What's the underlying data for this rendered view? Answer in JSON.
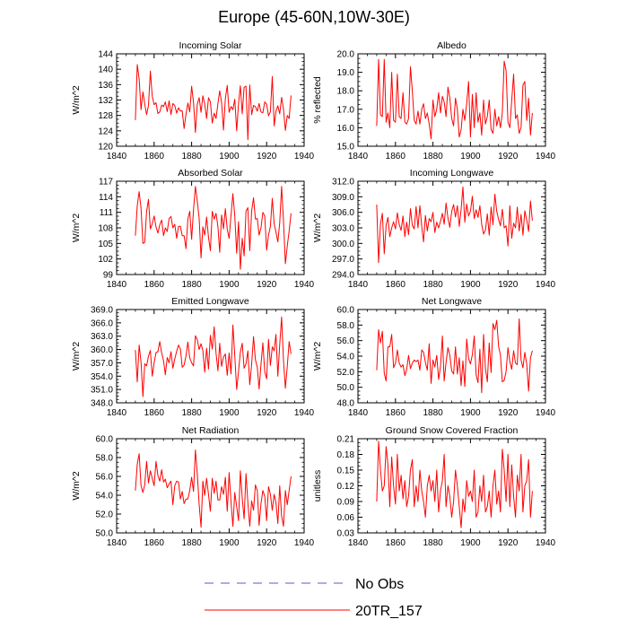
{
  "title": "Europe (45-60N,10W-30E)",
  "colors": {
    "model": "#ff0000",
    "obs": "#5a5acd",
    "axis": "#000000"
  },
  "legend": {
    "placement": "bottom-center",
    "items": [
      {
        "label": "No Obs",
        "style": "dashed",
        "color": "#5a5acd"
      },
      {
        "label": "20TR_157",
        "style": "solid",
        "color": "#ff0000"
      }
    ]
  },
  "chart_data": [
    {
      "type": "line",
      "title": "Incoming Solar",
      "xlabel": "",
      "ylabel": "W/m^2",
      "xlim": [
        1840,
        1940
      ],
      "ylim": [
        120,
        144
      ],
      "x_ticks": [
        "1840",
        "1860",
        "1880",
        "1900",
        "1920",
        "1940"
      ],
      "y_ticks": [
        "120",
        "124",
        "128",
        "132",
        "136",
        "140",
        "144"
      ],
      "series": [
        {
          "name": "20TR_157",
          "x_start": 1850,
          "values": [
            126.8,
            141.2,
            137.5,
            129.5,
            134.1,
            131.0,
            128.2,
            130.6,
            139.5,
            133.0,
            130.8,
            131.3,
            128.5,
            128.9,
            130.7,
            130.3,
            131.5,
            129.0,
            131.8,
            128.2,
            131.1,
            130.6,
            128.6,
            130.0,
            129.1,
            129.2,
            124.6,
            128.3,
            131.2,
            128.9,
            135.6,
            131.4,
            123.6,
            130.9,
            132.6,
            128.8,
            133.1,
            131.0,
            127.2,
            132.6,
            131.5,
            126.0,
            128.6,
            127.2,
            131.1,
            134.4,
            131.4,
            124.2,
            132.4,
            135.8,
            128.8,
            130.3,
            129.5,
            132.2,
            124.0,
            131.1,
            135.7,
            128.4,
            135.3,
            135.6,
            121.7,
            135.9,
            128.2,
            130.6,
            130.3,
            129.1,
            131.1,
            128.9,
            128.7,
            131.5,
            130.9,
            127.9,
            129.0,
            138.1,
            125.3,
            129.1,
            130.5,
            128.4,
            132.7,
            129.6,
            124.1,
            128.0,
            127.2,
            133.2
          ]
        }
      ]
    },
    {
      "type": "line",
      "title": "Albedo",
      "xlabel": "",
      "ylabel": "% reflected",
      "xlim": [
        1840,
        1940
      ],
      "ylim": [
        15,
        20
      ],
      "x_ticks": [
        "1840",
        "1860",
        "1880",
        "1900",
        "1920",
        "1940"
      ],
      "y_ticks": [
        "15.0",
        "16.0",
        "17.0",
        "18.0",
        "19.0",
        "20.0"
      ],
      "series": [
        {
          "name": "20TR_157",
          "x_start": 1850,
          "values": [
            16.1,
            19.7,
            16.7,
            16.6,
            19.7,
            16.3,
            16.8,
            16.0,
            19.0,
            16.4,
            16.3,
            18.9,
            16.6,
            16.5,
            17.9,
            16.3,
            16.2,
            16.5,
            19.3,
            18.0,
            16.4,
            16.2,
            16.9,
            16.2,
            17.0,
            17.3,
            16.5,
            16.8,
            16.2,
            15.4,
            17.5,
            16.6,
            17.0,
            17.9,
            16.8,
            17.7,
            17.4,
            16.6,
            18.2,
            17.6,
            16.5,
            16.1,
            17.6,
            17.0,
            15.5,
            15.9,
            17.0,
            16.4,
            17.3,
            18.5,
            15.5,
            17.8,
            16.0,
            17.9,
            16.3,
            16.8,
            15.6,
            17.5,
            16.2,
            16.6,
            17.5,
            15.9,
            15.7,
            17.0,
            16.1,
            16.6,
            16.0,
            16.8,
            19.6,
            19.1,
            16.3,
            16.0,
            17.5,
            18.9,
            16.5,
            16.7,
            15.7,
            16.0,
            18.3,
            18.5,
            16.4,
            17.6,
            15.6,
            16.8
          ]
        }
      ]
    },
    {
      "type": "line",
      "title": "Absorbed Solar",
      "xlabel": "",
      "ylabel": "W/m^2",
      "xlim": [
        1840,
        1940
      ],
      "ylim": [
        99,
        117
      ],
      "x_ticks": [
        "1840",
        "1860",
        "1880",
        "1900",
        "1920",
        "1940"
      ],
      "y_ticks": [
        "99",
        "102",
        "105",
        "108",
        "111",
        "114",
        "117"
      ],
      "series": [
        {
          "name": "20TR_157",
          "x_start": 1850,
          "values": [
            106.5,
            112.3,
            115.0,
            111.8,
            105.0,
            105.2,
            111.2,
            113.5,
            107.8,
            108.8,
            110.3,
            108.2,
            107.0,
            108.6,
            109.5,
            106.5,
            108.0,
            107.3,
            109.8,
            110.2,
            108.0,
            108.7,
            106.0,
            108.3,
            108.3,
            106.5,
            106.5,
            104.0,
            109.7,
            111.2,
            105.8,
            111.5,
            116.0,
            113.2,
            109.8,
            102.2,
            108.2,
            106.6,
            110.1,
            106.2,
            103.6,
            111.2,
            109.7,
            110.8,
            108.3,
            103.3,
            110.5,
            107.8,
            111.7,
            107.7,
            106.0,
            110.4,
            114.6,
            110.3,
            103.1,
            109.2,
            100.0,
            106.0,
            102.6,
            111.2,
            111.9,
            103.6,
            111.3,
            113.8,
            109.7,
            109.8,
            106.6,
            108.0,
            111.0,
            110.3,
            103.7,
            106.6,
            108.3,
            113.7,
            108.8,
            107.2,
            105.3,
            109.0,
            116.0,
            109.3,
            101.1,
            104.5,
            107.4,
            110.8
          ]
        }
      ]
    },
    {
      "type": "line",
      "title": "Incoming Longwave",
      "xlabel": "",
      "ylabel": "W/m^2",
      "xlim": [
        1840,
        1940
      ],
      "ylim": [
        294,
        312
      ],
      "x_ticks": [
        "1840",
        "1860",
        "1880",
        "1900",
        "1920",
        "1940"
      ],
      "y_ticks": [
        "294.0",
        "297.0",
        "300.0",
        "303.0",
        "306.0",
        "309.0",
        "312.0"
      ],
      "series": [
        {
          "name": "20TR_157",
          "x_start": 1850,
          "values": [
            307.5,
            296.3,
            303.8,
            305.8,
            298.0,
            303.5,
            305.0,
            301.3,
            303.0,
            304.2,
            302.8,
            305.9,
            303.7,
            302.5,
            305.3,
            301.3,
            304.1,
            301.7,
            306.7,
            303.5,
            302.8,
            307.1,
            303.0,
            307.3,
            303.3,
            300.3,
            305.4,
            302.4,
            304.8,
            304.2,
            306.0,
            302.1,
            304.1,
            303.0,
            304.3,
            305.8,
            303.7,
            307.8,
            304.9,
            303.1,
            306.2,
            307.5,
            305.1,
            307.3,
            303.3,
            306.6,
            310.9,
            304.1,
            307.6,
            305.3,
            306.2,
            309.1,
            304.8,
            306.5,
            305.0,
            307.3,
            303.7,
            301.8,
            302.6,
            305.7,
            301.6,
            307.0,
            303.6,
            309.5,
            306.2,
            304.6,
            303.4,
            306.6,
            303.0,
            303.4,
            299.5,
            307.3,
            301.0,
            303.9,
            303.0,
            307.0,
            302.4,
            305.6,
            301.6,
            306.3,
            304.5,
            302.3,
            308.2,
            304.4
          ]
        }
      ]
    },
    {
      "type": "line",
      "title": "Emitted Longwave",
      "xlabel": "",
      "ylabel": "W/m^2",
      "xlim": [
        1840,
        1940
      ],
      "ylim": [
        348,
        369
      ],
      "x_ticks": [
        "1840",
        "1860",
        "1880",
        "1900",
        "1920",
        "1940"
      ],
      "y_ticks": [
        "348.0",
        "351.0",
        "354.0",
        "357.0",
        "360.0",
        "363.0",
        "366.0",
        "369.0"
      ],
      "series": [
        {
          "name": "20TR_157",
          "x_start": 1850,
          "values": [
            359.9,
            352.7,
            361.0,
            357.2,
            349.4,
            356.8,
            356.3,
            358.5,
            359.8,
            354.0,
            357.0,
            359.3,
            359.5,
            361.8,
            359.2,
            357.5,
            354.3,
            358.2,
            357.0,
            359.5,
            355.8,
            357.9,
            359.6,
            361.0,
            360.1,
            356.0,
            356.5,
            358.5,
            361.7,
            358.1,
            357.0,
            356.3,
            363.1,
            362.2,
            360.0,
            361.3,
            359.8,
            354.9,
            360.3,
            355.6,
            363.2,
            360.1,
            365.1,
            359.2,
            355.2,
            361.4,
            356.2,
            358.3,
            359.0,
            354.2,
            359.2,
            354.5,
            365.5,
            358.6,
            351.0,
            355.1,
            359.4,
            361.4,
            355.8,
            356.8,
            359.7,
            352.1,
            356.7,
            362.9,
            357.7,
            356.0,
            351.1,
            356.6,
            361.5,
            355.0,
            353.4,
            362.3,
            356.4,
            360.6,
            359.7,
            363.4,
            354.0,
            361.1,
            367.3,
            357.5,
            351.3,
            356.2,
            361.8,
            359.0
          ]
        }
      ]
    },
    {
      "type": "line",
      "title": "Net Longwave",
      "xlabel": "",
      "ylabel": "W/m^2",
      "xlim": [
        1840,
        1940
      ],
      "ylim": [
        48,
        60
      ],
      "x_ticks": [
        "1840",
        "1860",
        "1880",
        "1900",
        "1920",
        "1940"
      ],
      "y_ticks": [
        "48.0",
        "50.0",
        "52.0",
        "54.0",
        "56.0",
        "58.0",
        "60.0"
      ],
      "series": [
        {
          "name": "20TR_157",
          "x_start": 1850,
          "values": [
            52.2,
            57.4,
            55.7,
            57.2,
            51.8,
            50.8,
            55.2,
            55.2,
            56.8,
            52.5,
            53.1,
            54.8,
            53.1,
            52.6,
            52.9,
            51.5,
            52.3,
            54.1,
            52.4,
            53.1,
            53.5,
            53.3,
            53.5,
            52.2,
            54.8,
            54.5,
            53.2,
            52.2,
            55.6,
            50.5,
            53.5,
            52.6,
            54.1,
            51.0,
            52.7,
            56.6,
            50.8,
            53.2,
            55.1,
            54.1,
            52.1,
            51.7,
            55.2,
            51.7,
            53.8,
            50.2,
            53.4,
            50.1,
            56.2,
            53.7,
            53.0,
            54.2,
            56.6,
            51.6,
            50.6,
            54.9,
            49.3,
            56.8,
            52.4,
            50.7,
            55.7,
            51.9,
            58.2,
            57.4,
            58.6,
            55.2,
            54.2,
            50.7,
            50.9,
            52.0,
            55.1,
            53.3,
            52.3,
            54.7,
            53.1,
            52.9,
            58.8,
            53.5,
            52.5,
            54.5,
            53.0,
            49.5,
            53.8,
            54.7
          ]
        }
      ]
    },
    {
      "type": "line",
      "title": "Net Radiation",
      "xlabel": "",
      "ylabel": "W/m^2",
      "xlim": [
        1840,
        1940
      ],
      "ylim": [
        50,
        60
      ],
      "x_ticks": [
        "1840",
        "1860",
        "1880",
        "1900",
        "1920",
        "1940"
      ],
      "y_ticks": [
        "50.0",
        "52.0",
        "54.0",
        "56.0",
        "58.0",
        "60.0"
      ],
      "series": [
        {
          "name": "20TR_157",
          "x_start": 1850,
          "values": [
            54.5,
            57.3,
            58.4,
            55.0,
            54.3,
            55.1,
            57.6,
            55.3,
            56.6,
            55.8,
            55.0,
            57.6,
            56.1,
            55.5,
            56.7,
            55.4,
            55.7,
            54.8,
            55.2,
            55.5,
            53.0,
            55.0,
            55.5,
            55.4,
            53.6,
            54.4,
            53.1,
            53.6,
            53.6,
            54.5,
            55.9,
            54.4,
            58.8,
            56.3,
            53.0,
            50.6,
            55.5,
            54.0,
            55.8,
            54.1,
            52.3,
            55.8,
            54.2,
            55.5,
            53.5,
            53.5,
            54.9,
            54.1,
            55.9,
            52.3,
            56.4,
            53.3,
            50.7,
            54.3,
            52.8,
            51.3,
            56.6,
            53.7,
            51.5,
            56.3,
            53.2,
            50.7,
            53.4,
            52.4,
            55.1,
            54.5,
            50.8,
            53.1,
            54.5,
            53.9,
            51.3,
            54.9,
            54.1,
            52.4,
            54.1,
            53.2,
            51.0,
            55.0,
            51.8,
            50.7,
            54.5,
            53.0,
            54.5,
            56.0
          ]
        }
      ]
    },
    {
      "type": "line",
      "title": "Ground Snow Covered Fraction",
      "xlabel": "",
      "ylabel": "unitless",
      "xlim": [
        1840,
        1940
      ],
      "ylim": [
        0.03,
        0.21
      ],
      "x_ticks": [
        "1840",
        "1860",
        "1880",
        "1900",
        "1920",
        "1940"
      ],
      "y_ticks": [
        "0.03",
        "0.06",
        "0.09",
        "0.12",
        "0.15",
        "0.18",
        "0.21"
      ],
      "series": [
        {
          "name": "20TR_157",
          "x_start": 1850,
          "values": [
            0.09,
            0.205,
            0.15,
            0.11,
            0.12,
            0.195,
            0.16,
            0.08,
            0.175,
            0.12,
            0.085,
            0.18,
            0.11,
            0.14,
            0.095,
            0.13,
            0.08,
            0.1,
            0.15,
            0.17,
            0.08,
            0.12,
            0.09,
            0.15,
            0.11,
            0.09,
            0.06,
            0.12,
            0.14,
            0.11,
            0.13,
            0.09,
            0.15,
            0.07,
            0.11,
            0.13,
            0.18,
            0.08,
            0.12,
            0.1,
            0.06,
            0.09,
            0.15,
            0.12,
            0.08,
            0.04,
            0.095,
            0.07,
            0.13,
            0.1,
            0.11,
            0.09,
            0.15,
            0.06,
            0.07,
            0.12,
            0.09,
            0.14,
            0.07,
            0.08,
            0.11,
            0.06,
            0.12,
            0.15,
            0.085,
            0.11,
            0.07,
            0.19,
            0.15,
            0.09,
            0.18,
            0.08,
            0.16,
            0.1,
            0.06,
            0.14,
            0.11,
            0.18,
            0.07,
            0.12,
            0.13,
            0.17,
            0.06,
            0.11
          ]
        }
      ]
    }
  ]
}
